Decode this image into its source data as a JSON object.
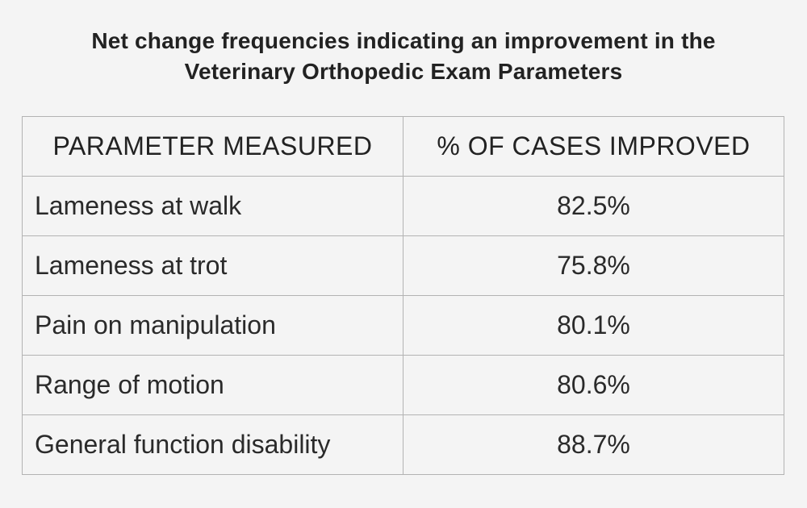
{
  "chart_data": {
    "type": "table",
    "title_lines": [
      "Net change frequencies indicating an improvement in the",
      "Veterinary Orthopedic Exam Parameters"
    ],
    "columns": [
      "PARAMETER MEASURED",
      "% OF CASES IMPROVED"
    ],
    "rows": [
      {
        "parameter": "Lameness at walk",
        "value": "82.5%"
      },
      {
        "parameter": "Lameness at trot",
        "value": "75.8%"
      },
      {
        "parameter": "Pain on manipulation",
        "value": "80.1%"
      },
      {
        "parameter": "Range of motion",
        "value": "80.6%"
      },
      {
        "parameter": "General function disability",
        "value": "88.7%"
      }
    ]
  },
  "colors": {
    "background": "#f4f4f4",
    "border": "#b3b3b3",
    "text": "#2a2a2a"
  }
}
